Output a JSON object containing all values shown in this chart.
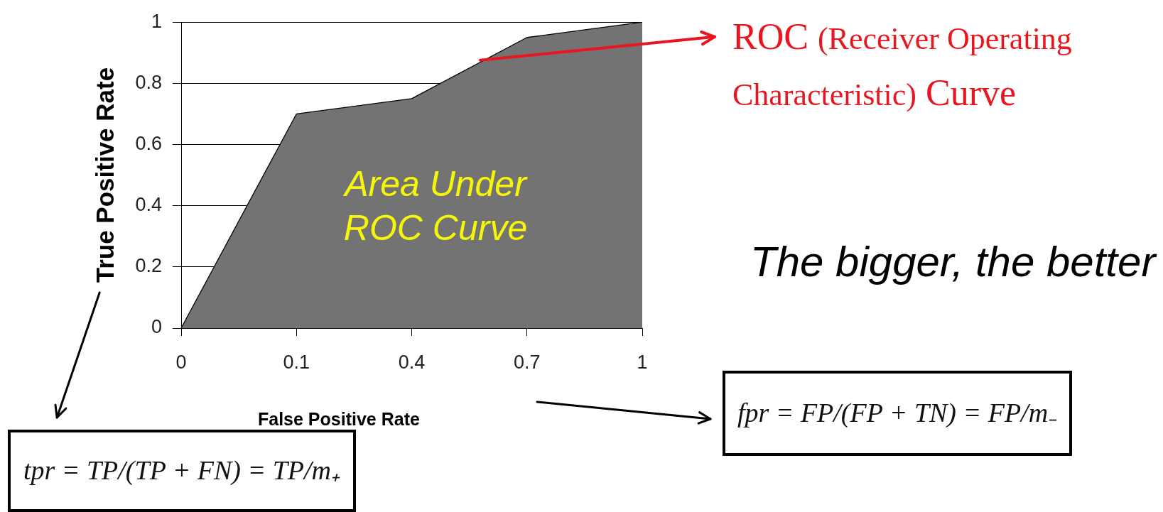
{
  "chart_data": {
    "type": "area",
    "categories": [
      "0",
      "0.1",
      "0.4",
      "0.7",
      "1"
    ],
    "values": [
      0,
      0.7,
      0.75,
      0.95,
      1
    ],
    "color": "#737373",
    "xlabel": "False Positive Rate",
    "ylabel": "True Positive Rate",
    "ylim": [
      0,
      1
    ],
    "yticks": [
      0,
      0.2,
      0.4,
      0.6,
      0.8,
      1
    ],
    "grid": "y",
    "annotations": [
      "ROC (Receiver Operating Characteristic) Curve",
      "Area Under ROC Curve",
      "The bigger, the better",
      "tpr = TP/(TP + FN) = TP/m₊",
      "fpr = FP/(FP + TN) = FP/m₋"
    ]
  }
}
